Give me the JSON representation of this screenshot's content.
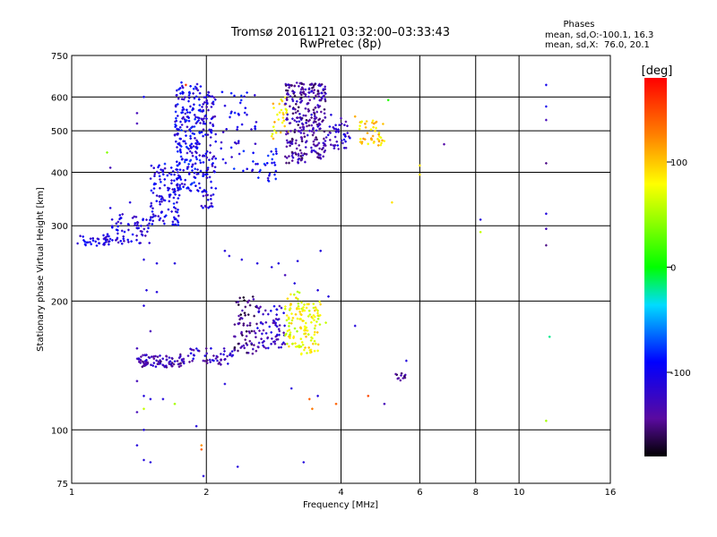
{
  "chart_data": {
    "type": "scatter",
    "title": "Tromsø 20161121 03:32:00–03:33:43",
    "subtitle": "RwPretec (8p)",
    "xlabel": "Frequency [MHz]",
    "ylabel": "Stationary phase Virtual Height [km]",
    "x_scale": "log",
    "y_scale": "log",
    "xlim": [
      1,
      16
    ],
    "ylim": [
      75,
      750
    ],
    "x_ticks": [
      1,
      2,
      4,
      6,
      8,
      10,
      16
    ],
    "y_ticks": [
      75,
      100,
      200,
      300,
      400,
      500,
      600,
      750
    ],
    "x_gridlines": [
      2,
      4,
      6,
      8,
      10
    ],
    "y_gridlines": [
      100,
      200,
      300,
      400,
      500,
      600
    ],
    "grid": true,
    "legend": {
      "heading": "Phases",
      "lines": [
        "mean, sd,O:-100.1, 16.3",
        "mean, sd,X:  76.0, 20.1"
      ],
      "placement": "top-right"
    },
    "colorbar": {
      "label": "[deg]",
      "range": [
        -180,
        180
      ],
      "ticks": [
        100,
        0,
        -100
      ],
      "colormap": "rainbow"
    },
    "clusters": [
      {
        "f0": 1.03,
        "f1": 1.22,
        "h0": 268,
        "h1": 285,
        "phase": -105,
        "n": 35
      },
      {
        "f0": 1.2,
        "f1": 1.5,
        "h0": 272,
        "h1": 320,
        "phase": -112,
        "n": 70
      },
      {
        "f0": 1.5,
        "f1": 1.75,
        "h0": 300,
        "h1": 420,
        "phase": -105,
        "n": 120
      },
      {
        "f0": 1.7,
        "f1": 1.95,
        "h0": 360,
        "h1": 650,
        "phase": -100,
        "n": 220
      },
      {
        "f0": 1.95,
        "f1": 2.1,
        "h0": 330,
        "h1": 620,
        "phase": -110,
        "n": 110
      },
      {
        "f0": 2.15,
        "f1": 2.6,
        "h0": 400,
        "h1": 620,
        "phase": -100,
        "n": 50
      },
      {
        "f0": 2.6,
        "f1": 2.9,
        "h0": 380,
        "h1": 460,
        "phase": -95,
        "n": 25
      },
      {
        "f0": 2.8,
        "f1": 3.05,
        "h0": 470,
        "h1": 600,
        "phase": 90,
        "n": 30
      },
      {
        "f0": 3.0,
        "f1": 3.35,
        "h0": 420,
        "h1": 650,
        "phase": -140,
        "n": 160
      },
      {
        "f0": 3.35,
        "f1": 3.7,
        "h0": 430,
        "h1": 650,
        "phase": -135,
        "n": 140
      },
      {
        "f0": 3.7,
        "f1": 4.2,
        "h0": 450,
        "h1": 520,
        "phase": -120,
        "n": 40
      },
      {
        "f0": 4.4,
        "f1": 5.0,
        "h0": 460,
        "h1": 530,
        "phase": 95,
        "n": 45
      },
      {
        "f0": 1.4,
        "f1": 1.8,
        "h0": 140,
        "h1": 150,
        "phase": -135,
        "n": 90
      },
      {
        "f0": 1.8,
        "f1": 2.3,
        "h0": 142,
        "h1": 155,
        "phase": -125,
        "n": 50
      },
      {
        "f0": 2.3,
        "f1": 2.6,
        "h0": 150,
        "h1": 205,
        "phase": -150,
        "n": 70
      },
      {
        "f0": 2.6,
        "f1": 3.0,
        "h0": 155,
        "h1": 195,
        "phase": -120,
        "n": 70
      },
      {
        "f0": 3.0,
        "f1": 3.25,
        "h0": 155,
        "h1": 215,
        "phase": 75,
        "n": 60
      },
      {
        "f0": 3.25,
        "f1": 3.6,
        "h0": 150,
        "h1": 200,
        "phase": 80,
        "n": 80
      },
      {
        "f0": 5.3,
        "f1": 5.6,
        "h0": 130,
        "h1": 136,
        "phase": -140,
        "n": 10
      }
    ],
    "scattered_points": [
      [
        1.2,
        445,
        40
      ],
      [
        1.22,
        410,
        -130
      ],
      [
        1.4,
        550,
        -130
      ],
      [
        1.4,
        520,
        -130
      ],
      [
        1.45,
        600,
        -100
      ],
      [
        1.8,
        640,
        160
      ],
      [
        1.35,
        340,
        -110
      ],
      [
        1.22,
        330,
        -110
      ],
      [
        1.45,
        250,
        -110
      ],
      [
        1.55,
        245,
        -110
      ],
      [
        1.7,
        245,
        -110
      ],
      [
        1.47,
        212,
        -110
      ],
      [
        1.55,
        210,
        -110
      ],
      [
        1.45,
        195,
        -110
      ],
      [
        1.5,
        170,
        -130
      ],
      [
        1.4,
        155,
        -130
      ],
      [
        1.4,
        130,
        -130
      ],
      [
        1.45,
        120,
        -110
      ],
      [
        1.5,
        118,
        -110
      ],
      [
        1.4,
        110,
        -130
      ],
      [
        1.45,
        112,
        60
      ],
      [
        1.45,
        100,
        -110
      ],
      [
        1.6,
        118,
        -110
      ],
      [
        1.7,
        115,
        50
      ],
      [
        1.4,
        92,
        -110
      ],
      [
        1.45,
        85,
        -110
      ],
      [
        1.5,
        84,
        -110
      ],
      [
        1.9,
        102,
        -110
      ],
      [
        1.95,
        92,
        120
      ],
      [
        1.95,
        90,
        140
      ],
      [
        1.97,
        78,
        -110
      ],
      [
        2.2,
        128,
        -110
      ],
      [
        2.35,
        82,
        -110
      ],
      [
        2.2,
        262,
        -110
      ],
      [
        2.25,
        255,
        -110
      ],
      [
        2.4,
        250,
        -110
      ],
      [
        2.6,
        245,
        -110
      ],
      [
        2.8,
        240,
        -110
      ],
      [
        2.9,
        245,
        -110
      ],
      [
        3.2,
        248,
        -110
      ],
      [
        3.6,
        262,
        -110
      ],
      [
        3.0,
        230,
        -130
      ],
      [
        3.15,
        220,
        -110
      ],
      [
        3.55,
        212,
        -110
      ],
      [
        3.75,
        205,
        -110
      ],
      [
        3.7,
        178,
        60
      ],
      [
        3.1,
        125,
        -110
      ],
      [
        3.4,
        118,
        140
      ],
      [
        3.45,
        112,
        130
      ],
      [
        3.55,
        120,
        -110
      ],
      [
        3.9,
        115,
        140
      ],
      [
        4.3,
        175,
        -110
      ],
      [
        4.6,
        120,
        150
      ],
      [
        5.0,
        115,
        -130
      ],
      [
        5.3,
        135,
        -140
      ],
      [
        5.45,
        134,
        -130
      ],
      [
        5.6,
        145,
        -110
      ],
      [
        3.3,
        84,
        -110
      ],
      [
        5.2,
        340,
        90
      ],
      [
        5.1,
        590,
        10
      ],
      [
        6.0,
        415,
        90
      ],
      [
        6.0,
        395,
        90
      ],
      [
        6.8,
        465,
        -140
      ],
      [
        8.2,
        310,
        -110
      ],
      [
        8.2,
        290,
        60
      ],
      [
        11.5,
        640,
        -100
      ],
      [
        11.5,
        570,
        -100
      ],
      [
        11.5,
        530,
        -130
      ],
      [
        11.5,
        420,
        -150
      ],
      [
        11.5,
        320,
        -110
      ],
      [
        11.5,
        295,
        -130
      ],
      [
        11.5,
        270,
        -150
      ],
      [
        11.5,
        105,
        50
      ],
      [
        11.7,
        165,
        -20
      ],
      [
        3.9,
        505,
        -110
      ],
      [
        4.1,
        525,
        -140
      ],
      [
        4.3,
        540,
        110
      ],
      [
        4.0,
        535,
        -130
      ],
      [
        3.8,
        545,
        -110
      ]
    ]
  }
}
